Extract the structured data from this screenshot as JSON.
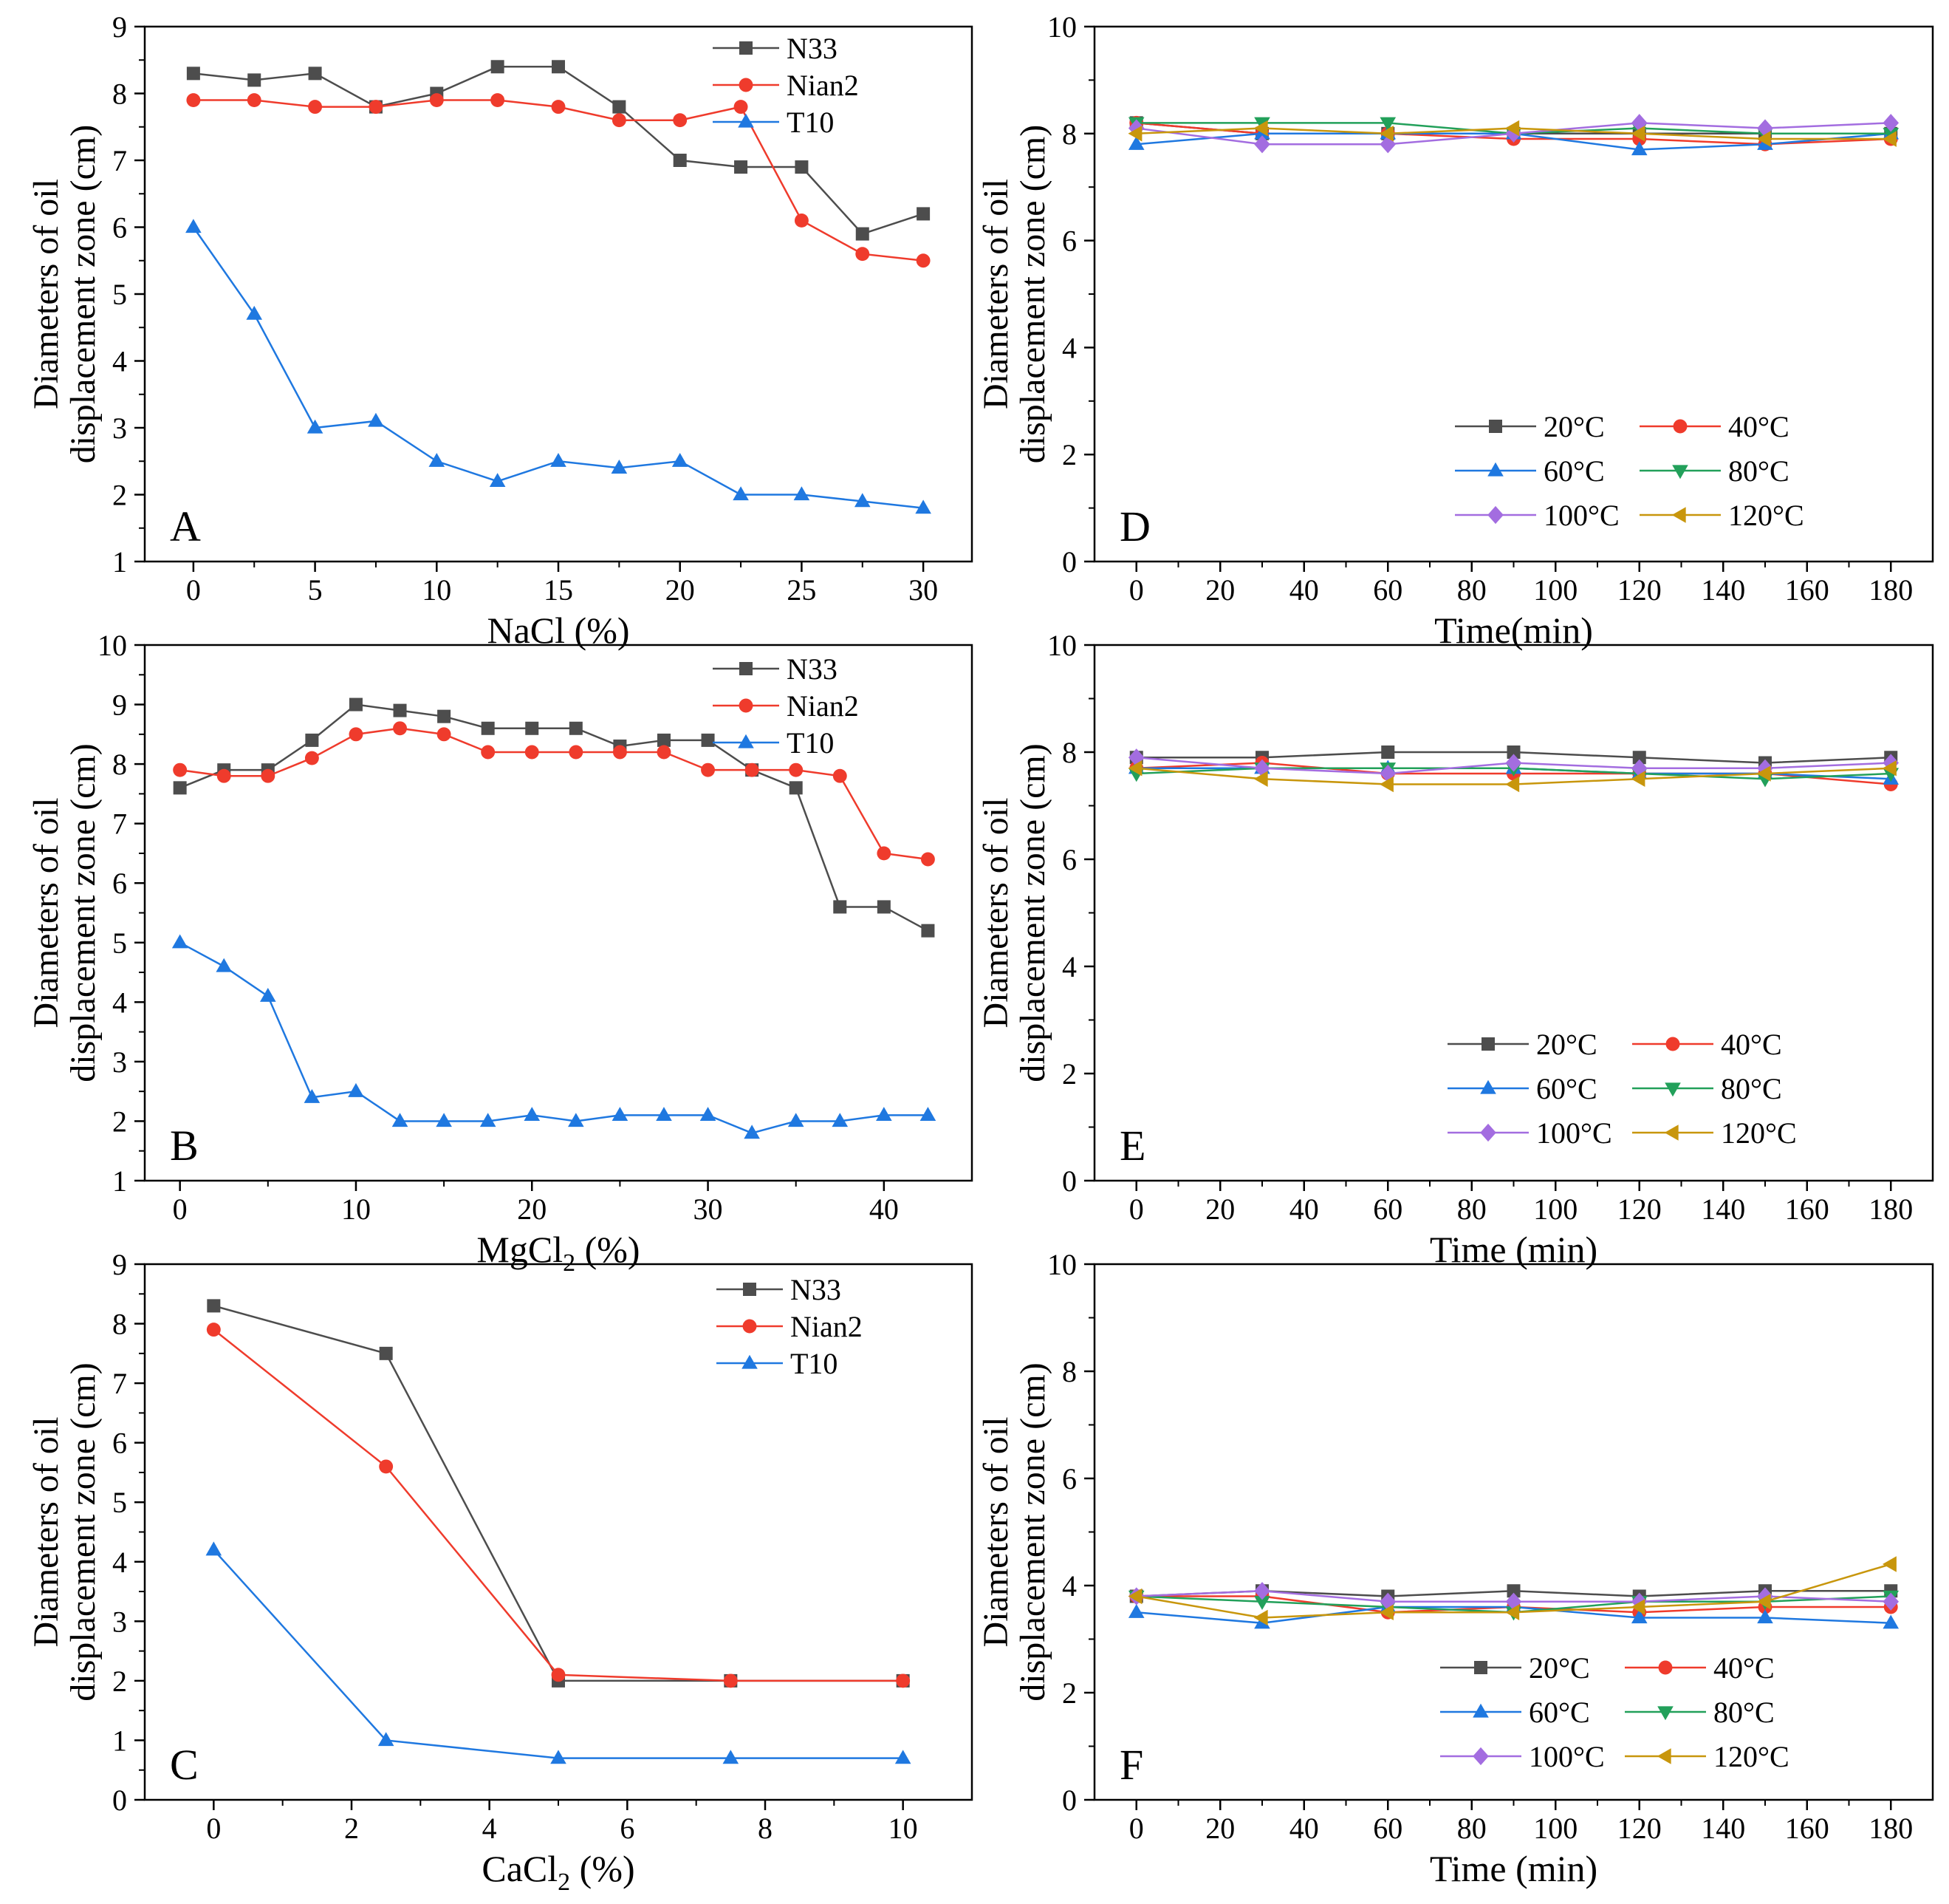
{
  "colors": {
    "N33": "#4d4d4d",
    "Nian2": "#ef3b2c",
    "T10": "#1f78e0",
    "20C": "#4d4d4d",
    "40C": "#ef3b2c",
    "60C": "#1f78e0",
    "80C": "#22a05a",
    "100C": "#a36de0",
    "120C": "#c8960c"
  },
  "chart_data": [
    {
      "id": "A",
      "type": "line",
      "panel_label": "A",
      "xlabel": "NaCl (%)",
      "ylabel": [
        "Diameters of oil",
        "displacement zone (cm)"
      ],
      "xlim": [
        -2,
        32
      ],
      "ylim": [
        1,
        9
      ],
      "xticks": [
        0,
        5,
        10,
        15,
        20,
        25,
        30
      ],
      "yticks": [
        1,
        2,
        3,
        4,
        5,
        6,
        7,
        8,
        9
      ],
      "legend_position": "top-right",
      "x": [
        0,
        2.5,
        5,
        7.5,
        10,
        12.5,
        15,
        17.5,
        20,
        22.5,
        25,
        27.5,
        30
      ],
      "series": [
        {
          "name": "N33",
          "color_key": "N33",
          "marker": "square",
          "values": [
            8.3,
            8.2,
            8.3,
            7.8,
            8.0,
            8.4,
            8.4,
            7.8,
            7.0,
            6.9,
            6.9,
            5.9,
            6.2
          ]
        },
        {
          "name": "Nian2",
          "color_key": "Nian2",
          "marker": "circle",
          "values": [
            7.9,
            7.9,
            7.8,
            7.8,
            7.9,
            7.9,
            7.8,
            7.6,
            7.6,
            7.8,
            6.1,
            5.6,
            5.5
          ]
        },
        {
          "name": "T10",
          "color_key": "T10",
          "marker": "triangle-up",
          "values": [
            6.0,
            4.7,
            3.0,
            3.1,
            2.5,
            2.2,
            2.5,
            2.4,
            2.5,
            2.0,
            2.0,
            1.9,
            1.8
          ]
        }
      ]
    },
    {
      "id": "B",
      "type": "line",
      "panel_label": "B",
      "xlabel": "MgCl",
      "xlabel_sub": "2",
      "xlabel_suffix": " (%)",
      "ylabel": [
        "Diameters of oil",
        "displacement zone (cm)"
      ],
      "xlim": [
        -2,
        45
      ],
      "ylim": [
        1,
        10
      ],
      "xticks": [
        0,
        10,
        20,
        30,
        40
      ],
      "yticks": [
        1,
        2,
        3,
        4,
        5,
        6,
        7,
        8,
        9,
        10
      ],
      "legend_position": "top-right",
      "x": [
        0,
        2.5,
        5,
        7.5,
        10,
        12.5,
        15,
        17.5,
        20,
        22.5,
        25,
        27.5,
        30,
        32.5,
        35,
        37.5,
        40,
        42.5
      ],
      "series": [
        {
          "name": "N33",
          "color_key": "N33",
          "marker": "square",
          "values": [
            7.6,
            7.9,
            7.9,
            8.4,
            9.0,
            8.9,
            8.8,
            8.6,
            8.6,
            8.6,
            8.3,
            8.4,
            8.4,
            7.9,
            7.6,
            5.6,
            5.6,
            5.2
          ]
        },
        {
          "name": "Nian2",
          "color_key": "Nian2",
          "marker": "circle",
          "values": [
            7.9,
            7.8,
            7.8,
            8.1,
            8.5,
            8.6,
            8.5,
            8.2,
            8.2,
            8.2,
            8.2,
            8.2,
            7.9,
            7.9,
            7.9,
            7.8,
            6.5,
            6.4
          ]
        },
        {
          "name": "T10",
          "color_key": "T10",
          "marker": "triangle-up",
          "values": [
            5.0,
            4.6,
            4.1,
            2.4,
            2.5,
            2.0,
            2.0,
            2.0,
            2.1,
            2.0,
            2.1,
            2.1,
            2.1,
            1.8,
            2.0,
            2.0,
            2.1,
            2.1
          ]
        }
      ]
    },
    {
      "id": "C",
      "type": "line",
      "panel_label": "C",
      "xlabel": "CaCl",
      "xlabel_sub": "2",
      "xlabel_suffix": " (%)",
      "ylabel": [
        "Diameters of oil",
        "displacement zone (cm)"
      ],
      "xlim": [
        -1,
        11
      ],
      "ylim": [
        0,
        9
      ],
      "xticks": [
        0,
        2,
        4,
        6,
        8,
        10
      ],
      "yticks": [
        0,
        1,
        2,
        3,
        4,
        5,
        6,
        7,
        8,
        9
      ],
      "legend_position": "top-right",
      "x": [
        0,
        2.5,
        5,
        7.5,
        10
      ],
      "series": [
        {
          "name": "N33",
          "color_key": "N33",
          "marker": "square",
          "values": [
            8.3,
            7.5,
            2.0,
            2.0,
            2.0
          ]
        },
        {
          "name": "Nian2",
          "color_key": "Nian2",
          "marker": "circle",
          "values": [
            7.9,
            5.6,
            2.1,
            2.0,
            2.0
          ]
        },
        {
          "name": "T10",
          "color_key": "T10",
          "marker": "triangle-up",
          "values": [
            4.2,
            1.0,
            0.7,
            0.7,
            0.7
          ]
        }
      ]
    },
    {
      "id": "D",
      "type": "line",
      "panel_label": "D",
      "xlabel": "Time(min)",
      "ylabel": [
        "Diameters of oil",
        "displacement zone (cm)"
      ],
      "xlim": [
        -10,
        190
      ],
      "ylim": [
        0,
        10
      ],
      "xticks": [
        0,
        20,
        40,
        60,
        80,
        100,
        120,
        140,
        160,
        180
      ],
      "yticks": [
        0,
        2,
        4,
        6,
        8,
        10
      ],
      "legend_position": "bottom-right",
      "x": [
        0,
        30,
        60,
        90,
        120,
        150,
        180
      ],
      "series": [
        {
          "name": "20°C",
          "color_key": "20C",
          "marker": "square",
          "values": [
            8.2,
            8.0,
            8.0,
            8.0,
            8.0,
            8.0,
            8.0
          ]
        },
        {
          "name": "40°C",
          "color_key": "40C",
          "marker": "circle",
          "values": [
            8.2,
            8.0,
            8.0,
            7.9,
            7.9,
            7.8,
            7.9
          ]
        },
        {
          "name": "60°C",
          "color_key": "60C",
          "marker": "triangle-up",
          "values": [
            7.8,
            8.0,
            8.0,
            8.0,
            7.7,
            7.8,
            8.0
          ]
        },
        {
          "name": "80°C",
          "color_key": "80C",
          "marker": "triangle-down",
          "values": [
            8.2,
            8.2,
            8.2,
            8.0,
            8.1,
            8.0,
            8.0
          ]
        },
        {
          "name": "100°C",
          "color_key": "100C",
          "marker": "diamond",
          "values": [
            8.1,
            7.8,
            7.8,
            8.0,
            8.2,
            8.1,
            8.2
          ]
        },
        {
          "name": "120°C",
          "color_key": "120C",
          "marker": "triangle-left",
          "values": [
            8.0,
            8.1,
            8.0,
            8.1,
            8.0,
            7.9,
            7.9
          ]
        }
      ]
    },
    {
      "id": "E",
      "type": "line",
      "panel_label": "E",
      "xlabel": "Time (min)",
      "ylabel": [
        "Diameters of oil",
        "displacement zone (cm)"
      ],
      "xlim": [
        -10,
        190
      ],
      "ylim": [
        0,
        10
      ],
      "xticks": [
        0,
        20,
        40,
        60,
        80,
        100,
        120,
        140,
        160,
        180
      ],
      "yticks": [
        0,
        2,
        4,
        6,
        8,
        10
      ],
      "legend_position": "bottom-right",
      "x": [
        0,
        30,
        60,
        90,
        120,
        150,
        180
      ],
      "series": [
        {
          "name": "20°C",
          "color_key": "20C",
          "marker": "square",
          "values": [
            7.9,
            7.9,
            8.0,
            8.0,
            7.9,
            7.8,
            7.9
          ]
        },
        {
          "name": "40°C",
          "color_key": "40C",
          "marker": "circle",
          "values": [
            7.7,
            7.8,
            7.6,
            7.6,
            7.6,
            7.6,
            7.4
          ]
        },
        {
          "name": "60°C",
          "color_key": "60C",
          "marker": "triangle-up",
          "values": [
            7.7,
            7.7,
            7.7,
            7.7,
            7.6,
            7.6,
            7.5
          ]
        },
        {
          "name": "80°C",
          "color_key": "80C",
          "marker": "triangle-down",
          "values": [
            7.6,
            7.7,
            7.7,
            7.7,
            7.6,
            7.5,
            7.6
          ]
        },
        {
          "name": "100°C",
          "color_key": "100C",
          "marker": "diamond",
          "values": [
            7.9,
            7.7,
            7.6,
            7.8,
            7.7,
            7.7,
            7.8
          ]
        },
        {
          "name": "120°C",
          "color_key": "120C",
          "marker": "triangle-left",
          "values": [
            7.7,
            7.5,
            7.4,
            7.4,
            7.5,
            7.6,
            7.7
          ]
        }
      ]
    },
    {
      "id": "F",
      "type": "line",
      "panel_label": "F",
      "xlabel": "Time (min)",
      "ylabel": [
        "Diameters of oil",
        "displacement zone (cm)"
      ],
      "xlim": [
        -10,
        190
      ],
      "ylim": [
        0,
        10
      ],
      "xticks": [
        0,
        20,
        40,
        60,
        80,
        100,
        120,
        140,
        160,
        180
      ],
      "yticks": [
        0,
        2,
        4,
        6,
        8,
        10
      ],
      "legend_position": "bottom-right",
      "x": [
        0,
        30,
        60,
        90,
        120,
        150,
        180
      ],
      "series": [
        {
          "name": "20°C",
          "color_key": "20C",
          "marker": "square",
          "values": [
            3.8,
            3.9,
            3.8,
            3.9,
            3.8,
            3.9,
            3.9
          ]
        },
        {
          "name": "40°C",
          "color_key": "40C",
          "marker": "circle",
          "values": [
            3.8,
            3.8,
            3.5,
            3.6,
            3.5,
            3.6,
            3.6
          ]
        },
        {
          "name": "60°C",
          "color_key": "60C",
          "marker": "triangle-up",
          "values": [
            3.5,
            3.3,
            3.6,
            3.6,
            3.4,
            3.4,
            3.3
          ]
        },
        {
          "name": "80°C",
          "color_key": "80C",
          "marker": "triangle-down",
          "values": [
            3.8,
            3.7,
            3.6,
            3.5,
            3.7,
            3.7,
            3.8
          ]
        },
        {
          "name": "100°C",
          "color_key": "100C",
          "marker": "diamond",
          "values": [
            3.8,
            3.9,
            3.7,
            3.7,
            3.7,
            3.8,
            3.7
          ]
        },
        {
          "name": "120°C",
          "color_key": "120C",
          "marker": "triangle-left",
          "values": [
            3.8,
            3.4,
            3.5,
            3.5,
            3.6,
            3.7,
            4.4
          ]
        }
      ]
    }
  ]
}
